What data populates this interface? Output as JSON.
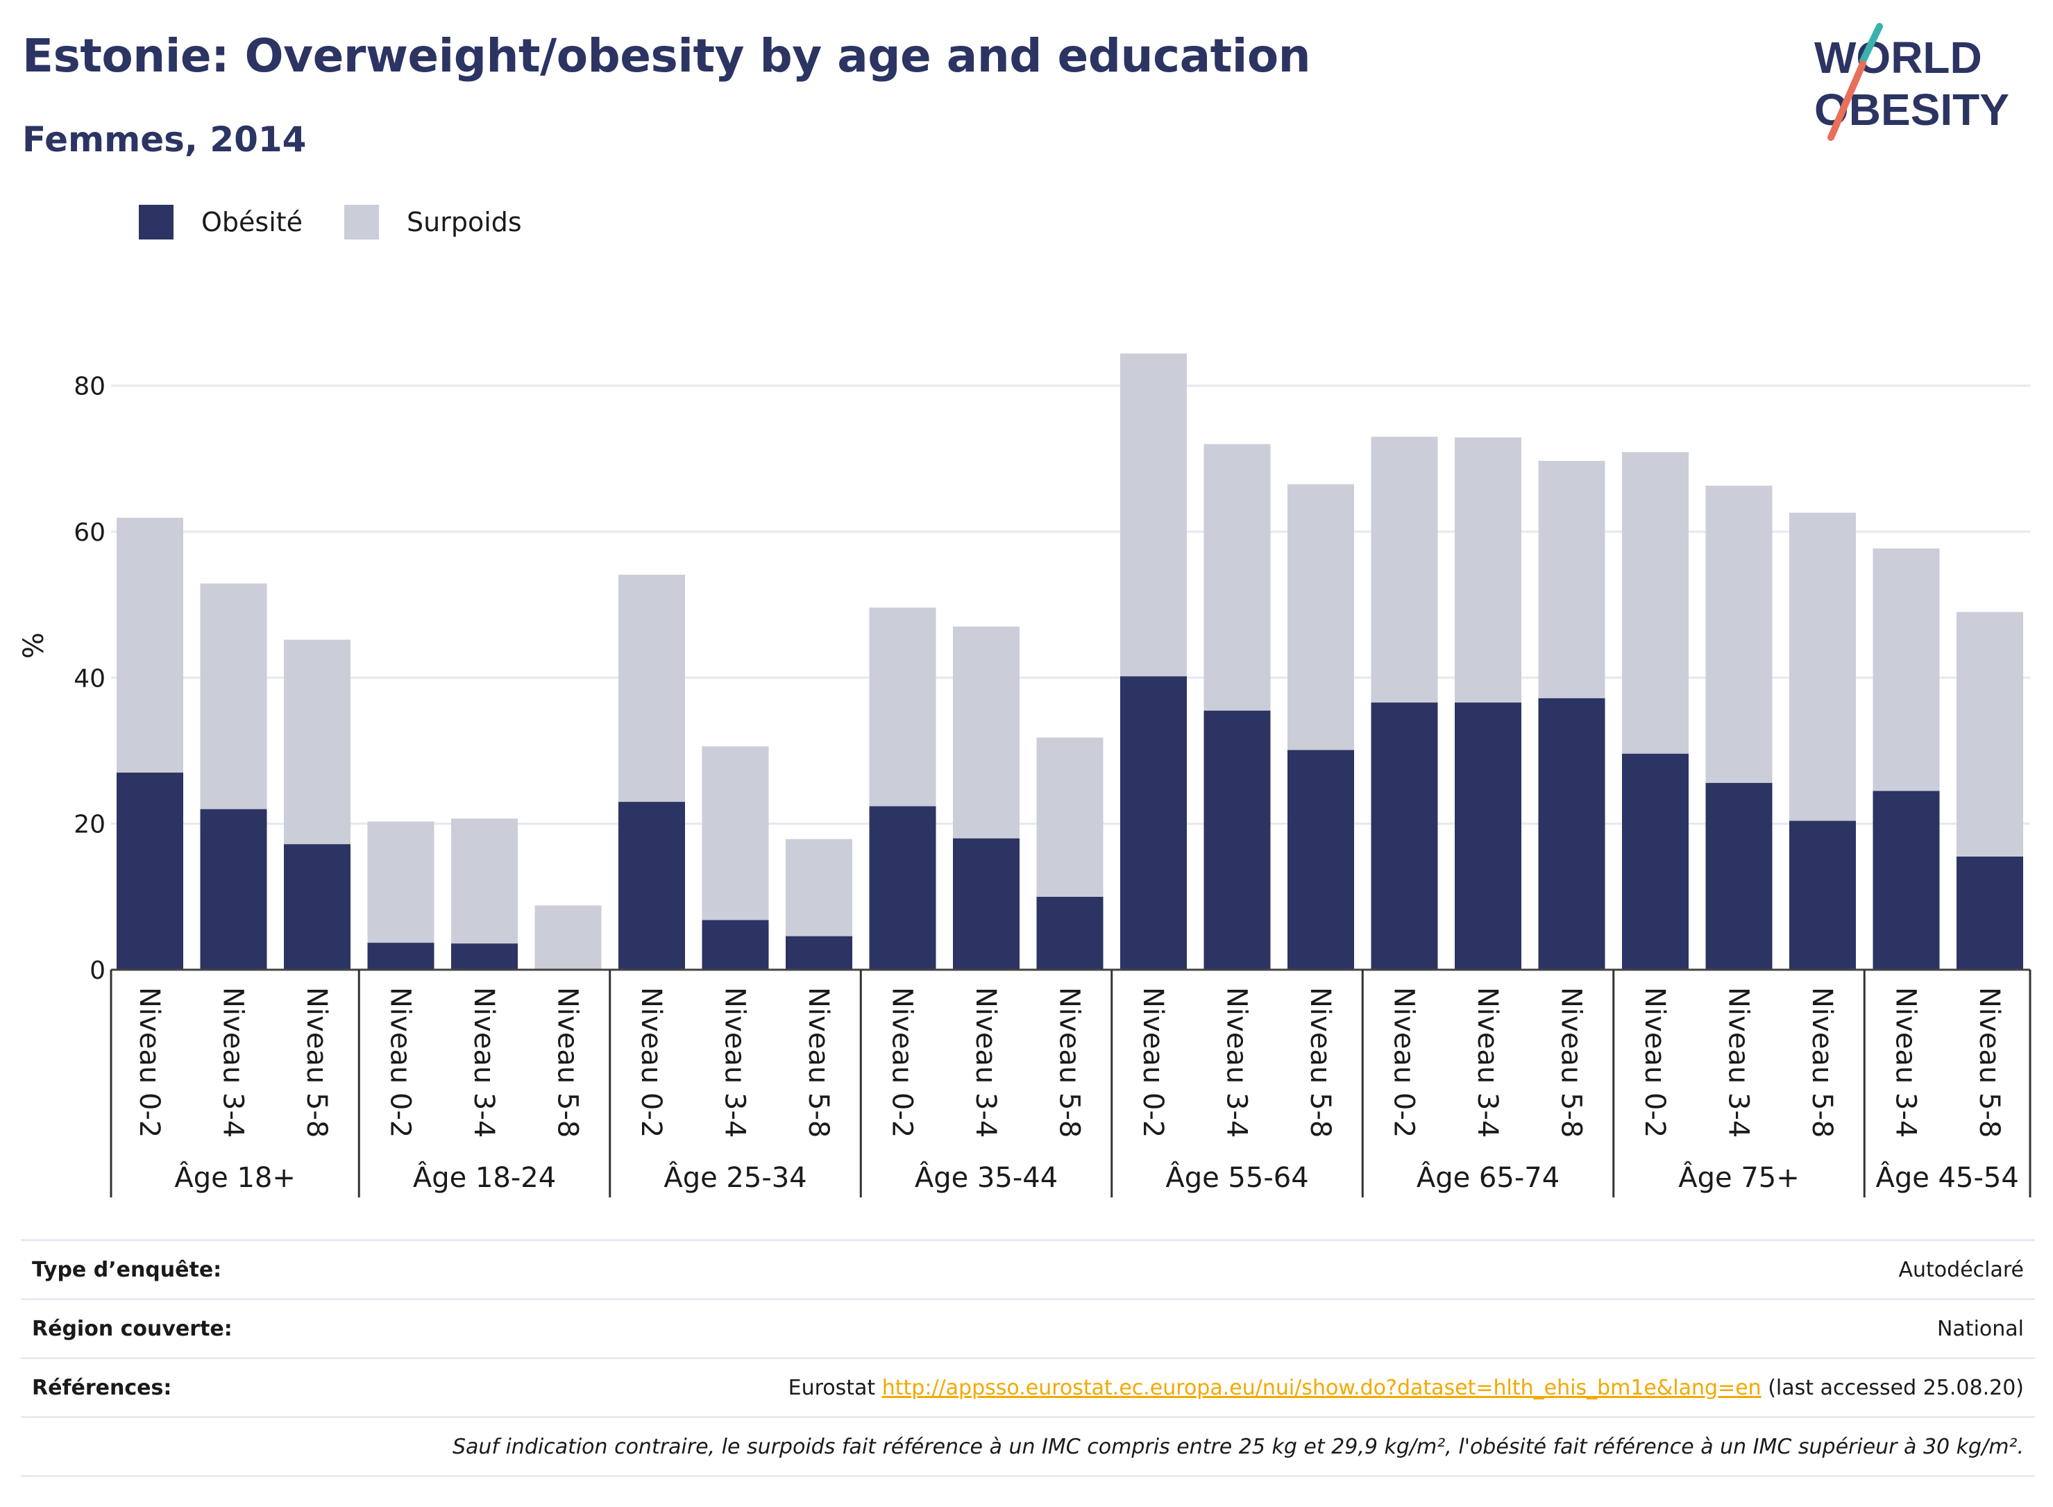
{
  "header": {
    "title": "Estonie: Overweight/obesity by age and education",
    "subtitle": "Femmes, 2014"
  },
  "logo": {
    "line1": "WORLD",
    "line2": "OBESITY",
    "colors": {
      "navy": "#2b3462",
      "teal": "#38b2ac",
      "coral": "#e8705a"
    }
  },
  "legend": {
    "items": [
      {
        "label": "Obésité",
        "color": "#2b3462"
      },
      {
        "label": "Surpoids",
        "color": "#cbcdd9"
      }
    ]
  },
  "chart_data": {
    "type": "bar",
    "stacked": true,
    "ylabel": "%",
    "ylim": [
      0,
      85
    ],
    "yticks": [
      0,
      20,
      40,
      60,
      80
    ],
    "grid": true,
    "legend_position": "top-left",
    "groups": [
      {
        "label": "Âge 18+",
        "categories": [
          "Niveau 0-2",
          "Niveau 3-4",
          "Niveau 5-8"
        ]
      },
      {
        "label": "Âge 18-24",
        "categories": [
          "Niveau 0-2",
          "Niveau 3-4",
          "Niveau 5-8"
        ]
      },
      {
        "label": "Âge 25-34",
        "categories": [
          "Niveau 0-2",
          "Niveau 3-4",
          "Niveau 5-8"
        ]
      },
      {
        "label": "Âge 35-44",
        "categories": [
          "Niveau 0-2",
          "Niveau 3-4",
          "Niveau 5-8"
        ]
      },
      {
        "label": "Âge 55-64",
        "categories": [
          "Niveau 0-2",
          "Niveau 3-4",
          "Niveau 5-8"
        ]
      },
      {
        "label": "Âge 65-74",
        "categories": [
          "Niveau 0-2",
          "Niveau 3-4",
          "Niveau 5-8"
        ]
      },
      {
        "label": "Âge 75+",
        "categories": [
          "Niveau 0-2",
          "Niveau 3-4",
          "Niveau 5-8"
        ]
      },
      {
        "label": "Âge 45-54",
        "categories": [
          "Niveau 3-4",
          "Niveau 5-8"
        ]
      }
    ],
    "series": [
      {
        "name": "Obésité",
        "color": "#2b3462",
        "values": [
          27.0,
          22.0,
          17.2,
          3.7,
          3.6,
          0.0,
          23.0,
          6.8,
          4.6,
          22.4,
          18.0,
          10.0,
          40.2,
          35.5,
          30.1,
          36.6,
          36.6,
          37.2,
          29.6,
          25.6,
          20.4,
          24.5,
          15.5
        ]
      },
      {
        "name": "Surpoids",
        "color": "#cbcdd9",
        "values": [
          34.9,
          30.9,
          28.0,
          16.6,
          17.1,
          8.8,
          31.1,
          23.8,
          13.3,
          27.2,
          29.0,
          21.8,
          44.2,
          36.5,
          36.4,
          36.4,
          36.3,
          32.5,
          41.3,
          40.7,
          42.2,
          33.2,
          33.5
        ]
      }
    ]
  },
  "info": {
    "survey_label": "Type d’enquête:",
    "survey_value": "Autodéclaré",
    "region_label": "Région couverte:",
    "region_value": "National",
    "refs_label": "Références:",
    "refs_prefix": "Eurostat",
    "refs_link": "http://appsso.eurostat.ec.europa.eu/nui/show.do?dataset=hlth_ehis_bm1e&lang=en",
    "refs_suffix": "(last accessed 25.08.20)",
    "note": "Sauf indication contraire, le surpoids fait référence à un IMC compris entre 25 kg et 29,9 kg/m², l'obésité fait référence à un IMC supérieur à 30 kg/m²."
  }
}
